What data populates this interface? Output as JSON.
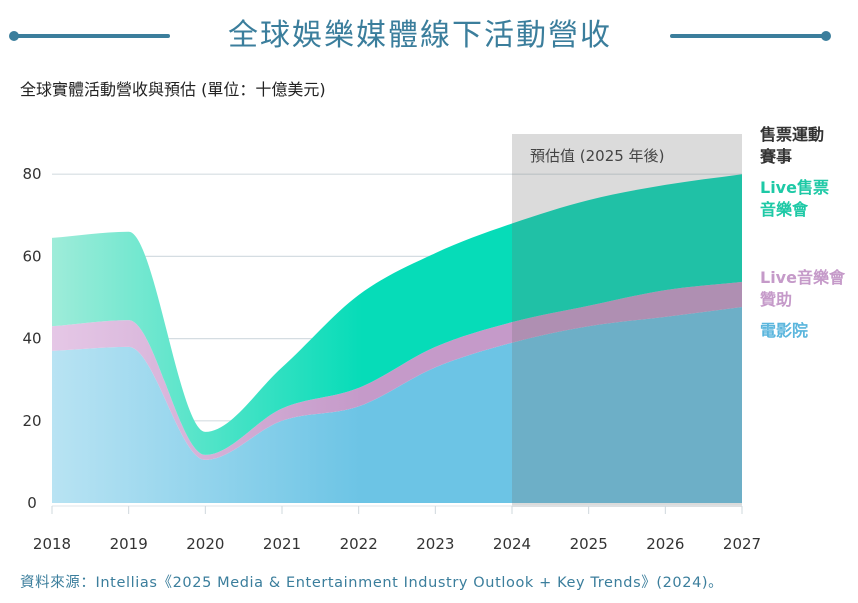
{
  "header": {
    "title": "全球娛樂媒體線下活動營收",
    "accent_color": "#3b7e9c"
  },
  "chart_data": {
    "type": "area",
    "stacked": true,
    "subtitle": "全球實體活動營收與預估 (單位：十億美元)",
    "xlabel": "",
    "ylabel": "",
    "x": [
      "2018",
      "2019",
      "2020",
      "2021",
      "2022",
      "2023",
      "2024",
      "2025",
      "2026",
      "2027"
    ],
    "yticks": [
      "0",
      "20",
      "40",
      "60",
      "80"
    ],
    "ylim": [
      0,
      85
    ],
    "grid": true,
    "forecast_region": {
      "from": "2024",
      "to": "2027",
      "label": "預估值 (2025 年後)"
    },
    "series": [
      {
        "name": "電影院",
        "color": "#6cc4e5",
        "label_color": "#5bb6dd",
        "values": [
          37,
          38,
          10.5,
          20,
          23.5,
          33,
          39,
          43,
          45.3,
          47.7
        ]
      },
      {
        "name": "Live音樂會贊助",
        "color": "#c59ac9",
        "label_color": "#c59ac9",
        "values": [
          6,
          6.5,
          1.2,
          3,
          4.5,
          5,
          5,
          5,
          6.5,
          6.1
        ]
      },
      {
        "name": "Live售票音樂會",
        "color": "#11d8b4",
        "label_color": "#1ec9a6",
        "values": [
          21.5,
          21.5,
          5.6,
          10,
          22.6,
          22.8,
          24,
          25.7,
          25.6,
          26.2
        ]
      },
      {
        "name": "售票運動賽事",
        "color": "#333333",
        "label_color": "#333333",
        "values": [
          0,
          0,
          0,
          0,
          0,
          0,
          0,
          0,
          0,
          0
        ]
      }
    ],
    "legend_placement": "right",
    "legend": [
      {
        "lines": [
          "售票運動",
          "賽事"
        ],
        "color": "#333333"
      },
      {
        "lines": [
          "Live售票",
          "音樂會"
        ],
        "color": "#1ec9a6"
      },
      {
        "lines": [
          "Live音樂會",
          "贊助"
        ],
        "color": "#c59ac9"
      },
      {
        "lines": [
          "電影院"
        ],
        "color": "#5bb6dd"
      }
    ]
  },
  "source": "資料來源：Intellias《2025 Media & Entertainment Industry Outlook + Key Trends》(2024)。"
}
